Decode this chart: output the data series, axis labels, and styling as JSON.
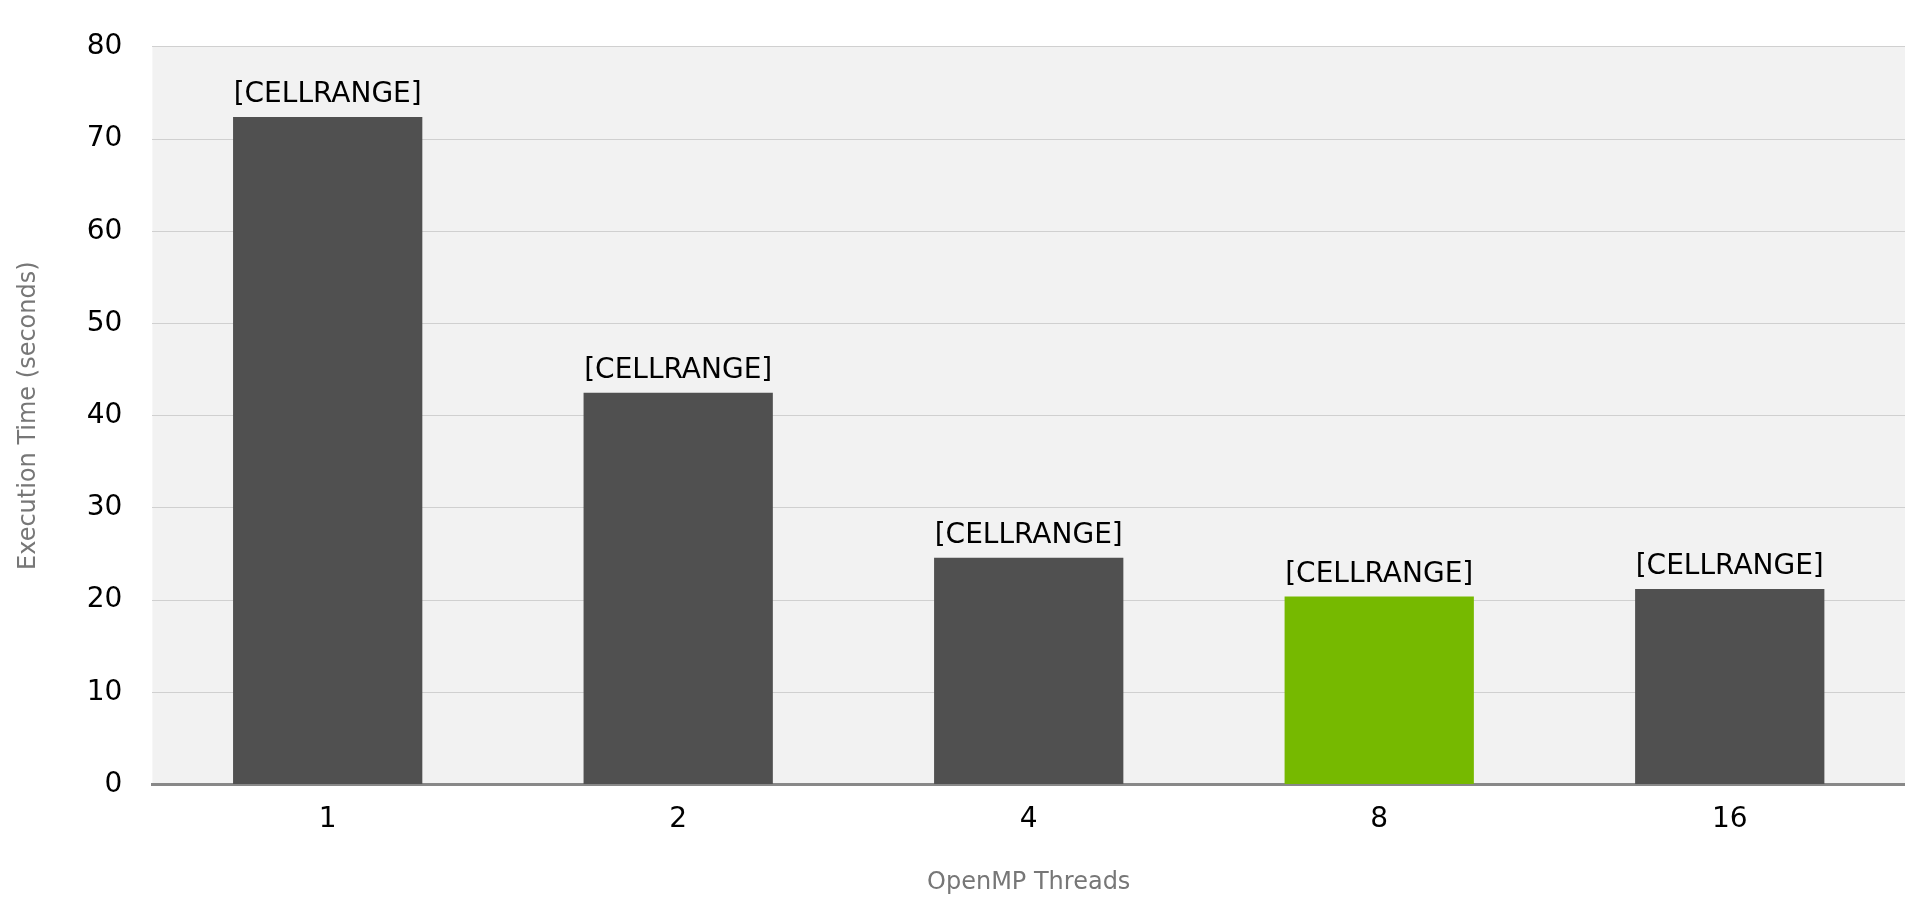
{
  "chart_data": {
    "type": "bar",
    "xlabel": "OpenMP Threads",
    "ylabel": "Execution Time (seconds)",
    "categories": [
      "1",
      "2",
      "4",
      "8",
      "16"
    ],
    "values": [
      72.4,
      42.5,
      24.6,
      20.4,
      21.2
    ],
    "colors": [
      "#505050",
      "#505050",
      "#505050",
      "#76b900",
      "#505050"
    ],
    "value_labels": [
      "[CELLRANGE]",
      "[CELLRANGE]",
      "[CELLRANGE]",
      "[CELLRANGE]",
      "[CELLRANGE]"
    ],
    "ylim": [
      0,
      80
    ],
    "yticks": [
      0,
      10,
      20,
      30,
      40,
      50,
      60,
      70,
      80
    ],
    "grid": "y",
    "legend": false
  }
}
